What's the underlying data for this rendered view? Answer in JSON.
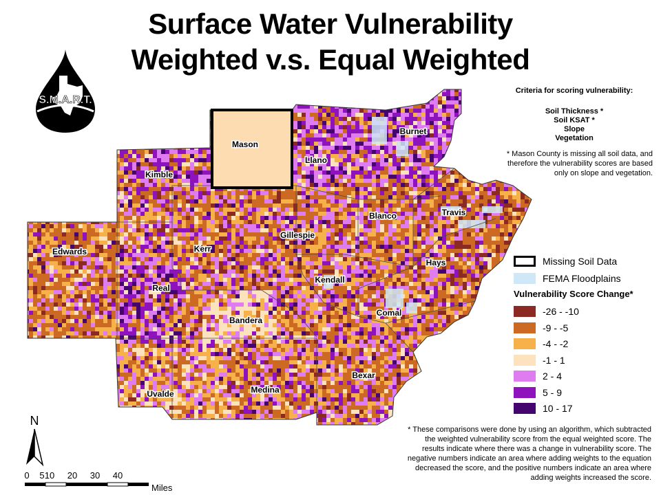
{
  "title": {
    "line1": "Surface Water Vulnerability",
    "line2": "Weighted v.s. Equal Weighted"
  },
  "logo": {
    "text": "S.M.A.R.T.",
    "icon": "water-drop-texas-icon"
  },
  "criteria": {
    "heading": "Criteria for scoring vulnerability:",
    "items": [
      "Soil Thickness *",
      "Soil KSAT *",
      "Slope",
      "Vegetation"
    ]
  },
  "mason_note": "* Mason County is missing all soil data, and therefore the vulnerability scores are based only on slope and vegetation.",
  "counties": [
    "Mason",
    "Llano",
    "Burnet",
    "Kimble",
    "Travis",
    "Blanco",
    "Gillespie",
    "Kerr",
    "Edwards",
    "Hays",
    "Kendall",
    "Real",
    "Comal",
    "Bandera",
    "Bexar",
    "Uvalde",
    "Medina"
  ],
  "legend": {
    "missing_soil_data": "Missing Soil Data",
    "fema_floodplains": "FEMA Floodplains",
    "score_title": "Vulnerability Score Change*",
    "classes": [
      {
        "label": "-26 - -10",
        "color": "#8b2a22"
      },
      {
        "label": "-9 - -5",
        "color": "#cc6a24"
      },
      {
        "label": "-4 - -2",
        "color": "#f6b14a"
      },
      {
        "label": "-1 - 1",
        "color": "#fce3bd"
      },
      {
        "label": "2 - 4",
        "color": "#de7cf0"
      },
      {
        "label": "5 - 9",
        "color": "#8e13bc"
      },
      {
        "label": "10 - 17",
        "color": "#44066e"
      }
    ],
    "mason_fill": "#fcdcb0",
    "floodplain_color": "#cfe8f7"
  },
  "footnote": "* These comparisons were done by using an algorithm, which subtracted the weighted vulnerability score from the equal weighted score. The results indicate where there was a change in vulnerability score. The negative numbers indicate an area where adding weights to the equation decreased the score, and the positive numbers indicate an area where adding weights increased the score.",
  "north_arrow": {
    "label": "N"
  },
  "scale_bar": {
    "ticks": [
      "0",
      "5",
      "10",
      "20",
      "30",
      "40"
    ],
    "unit": "Miles"
  }
}
